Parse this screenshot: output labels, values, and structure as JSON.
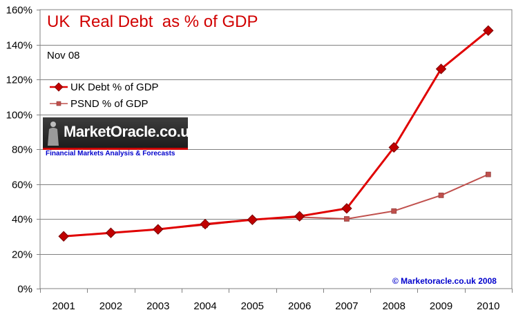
{
  "chart_data": {
    "type": "line",
    "title": "UK  Real Debt  as % of GDP",
    "subtitle": "Nov 08",
    "categories": [
      "2001",
      "2002",
      "2003",
      "2004",
      "2005",
      "2006",
      "2007",
      "2008",
      "2009",
      "2010"
    ],
    "series": [
      {
        "name": "UK Debt % of GDP",
        "values": [
          30,
          32,
          34,
          37,
          39.5,
          41.5,
          46,
          81,
          126,
          148
        ],
        "color": "#e00000",
        "marker": "diamond"
      },
      {
        "name": "PSND % of GDP",
        "values": [
          30,
          32,
          34,
          36.5,
          39.5,
          41,
          40,
          44.5,
          53.5,
          65.5
        ],
        "color": "#c0504d",
        "marker": "square"
      }
    ],
    "ylim": [
      0,
      160
    ],
    "yticks": [
      0,
      20,
      40,
      60,
      80,
      100,
      120,
      140,
      160
    ],
    "ytick_labels": [
      "0%",
      "20%",
      "40%",
      "60%",
      "80%",
      "100%",
      "120%",
      "140%",
      "160%"
    ],
    "grid": true,
    "legend_position": "top-left"
  },
  "logo": {
    "name": "MarketOracle.co.uk",
    "tagline": "Financial Markets Analysis & Forecasts"
  },
  "copyright": "© Marketoracle.co.uk 2008"
}
